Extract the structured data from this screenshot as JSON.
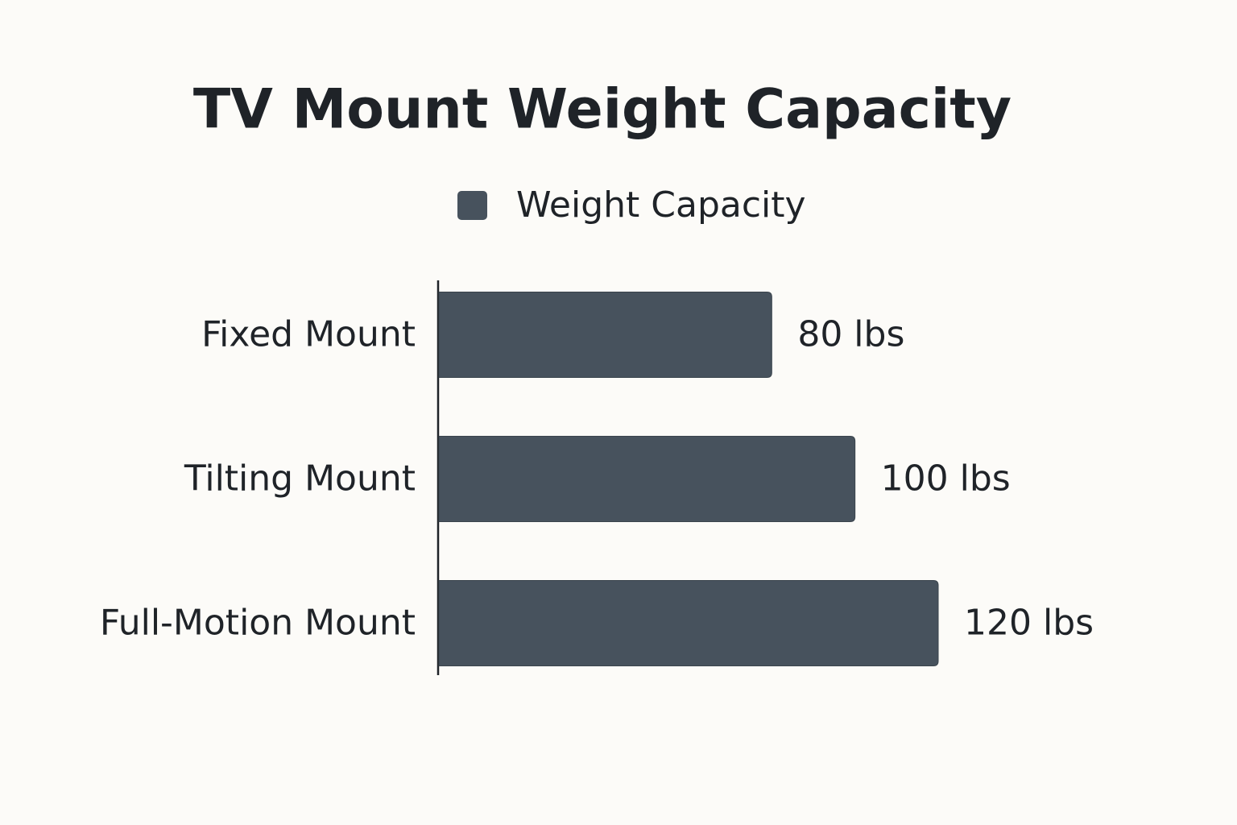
{
  "chart_data": {
    "type": "bar",
    "orientation": "horizontal",
    "title": "TV Mount Weight Capacity",
    "categories": [
      "Fixed Mount",
      "Tilting Mount",
      "Full-Motion Mount"
    ],
    "series": [
      {
        "name": "Weight Capacity",
        "color": "#47525d",
        "values": [
          80,
          100,
          120
        ],
        "value_labels": [
          "80 lbs",
          "100 lbs",
          "120 lbs"
        ]
      }
    ],
    "legend": "top"
  }
}
